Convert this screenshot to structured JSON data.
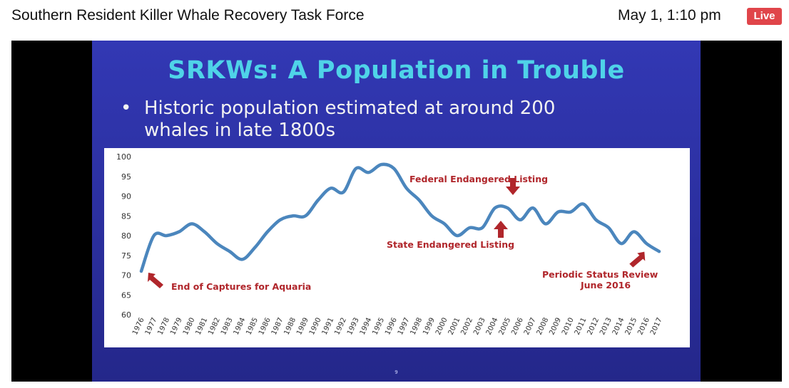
{
  "header": {
    "title": "Southern Resident Killer Whale Recovery Task Force",
    "datetime": "May 1, 1:10 pm",
    "live_badge": "Live"
  },
  "slide": {
    "title": "SRKWs: A Population in Trouble",
    "bullet": "Historic population estimated at around 200 whales in late 1800s",
    "page_number": "9"
  },
  "colors": {
    "slide_background": "#2e33a8",
    "title_text": "#4fd3e8",
    "line": "#4b86bd",
    "annotation": "#b0262b",
    "live_badge": "#e0454a"
  },
  "chart_data": {
    "type": "line",
    "ylim": [
      60,
      100
    ],
    "yticks": [
      60,
      65,
      70,
      75,
      80,
      85,
      90,
      95,
      100
    ],
    "grid": false,
    "x": [
      "1976",
      "1977",
      "1978",
      "1979",
      "1980",
      "1981",
      "1982",
      "1983",
      "1984",
      "1985",
      "1986",
      "1987",
      "1988",
      "1989",
      "1990",
      "1991",
      "1992",
      "1993",
      "1994",
      "1995",
      "1996",
      "1997",
      "1998",
      "1999",
      "2000",
      "2001",
      "2002",
      "2003",
      "2004",
      "2005",
      "2006",
      "2007",
      "2008",
      "2009",
      "2010",
      "2011",
      "2012",
      "2013",
      "2014",
      "2015",
      "2016",
      "2017"
    ],
    "values": [
      71,
      80,
      80,
      81,
      83,
      81,
      78,
      76,
      74,
      77,
      81,
      84,
      85,
      85,
      89,
      92,
      91,
      97,
      96,
      98,
      97,
      92,
      89,
      85,
      83,
      80,
      82,
      82,
      87,
      87,
      84,
      87,
      83,
      86,
      86,
      88,
      84,
      82,
      78,
      81,
      78,
      76
    ],
    "annotations": [
      {
        "text": "End of Captures for Aquaria",
        "x": "1976"
      },
      {
        "text": "Federal Endangered Listing",
        "x": "2005"
      },
      {
        "text": "State Endangered Listing",
        "x": "2004"
      },
      {
        "text": "Periodic Status Review",
        "text2": "June 2016",
        "x": "2016"
      }
    ]
  }
}
